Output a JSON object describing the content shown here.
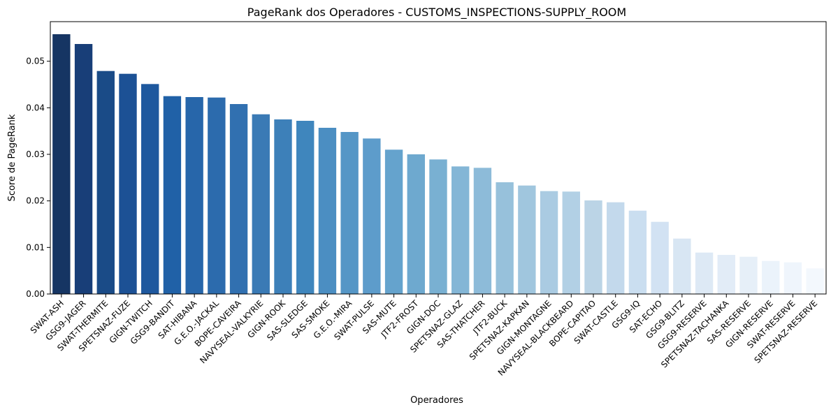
{
  "chart_data": {
    "type": "bar",
    "title": "PageRank dos Operadores - CUSTOMS_INSPECTIONS-SUPPLY_ROOM",
    "xlabel": "Operadores",
    "ylabel": "Score de PageRank",
    "ylim": [
      0,
      0.0585
    ],
    "yticks": [
      0.0,
      0.01,
      0.02,
      0.03,
      0.04,
      0.05
    ],
    "ytick_labels": [
      "0.00",
      "0.01",
      "0.02",
      "0.03",
      "0.04",
      "0.05"
    ],
    "grid": false,
    "categories": [
      "SWAT-ASH",
      "GSG9-JAGER",
      "SWAT-THERMITE",
      "SPETSNAZ-FUZE",
      "GIGN-TWITCH",
      "GSG9-BANDIT",
      "SAT-HIBANA",
      "G.E.O.-JACKAL",
      "BOPE-CAVEIRA",
      "NAVYSEAL-VALKYRIE",
      "GIGN-ROOK",
      "SAS-SLEDGE",
      "SAS-SMOKE",
      "G.E.O.-MIRA",
      "SWAT-PULSE",
      "SAS-MUTE",
      "JTF2-FROST",
      "GIGN-DOC",
      "SPETSNAZ-GLAZ",
      "SAS-THATCHER",
      "JTF2-BUCK",
      "SPETSNAZ-KAPKAN",
      "GIGN-MONTAGNE",
      "NAVYSEAL-BLACKBEARD",
      "BOPE-CAPITAO",
      "SWAT-CASTLE",
      "GSG9-IQ",
      "SAT-ECHO",
      "GSG9-BLITZ",
      "GSG9-RESERVE",
      "SPETSNAZ-TACHANKA",
      "SAS-RESERVE",
      "GIGN-RESERVE",
      "SWAT-RESERVE",
      "SPETSNAZ-RESERVE"
    ],
    "values": [
      0.0558,
      0.0537,
      0.0479,
      0.0473,
      0.0451,
      0.0425,
      0.0423,
      0.0422,
      0.0408,
      0.0386,
      0.0375,
      0.0372,
      0.0357,
      0.0348,
      0.0334,
      0.031,
      0.03,
      0.0289,
      0.0274,
      0.0271,
      0.024,
      0.0233,
      0.0221,
      0.022,
      0.0201,
      0.0197,
      0.0179,
      0.0155,
      0.0119,
      0.0089,
      0.0084,
      0.008,
      0.0071,
      0.0068,
      0.0055
    ],
    "colors": [
      "#163563",
      "#183e78",
      "#1a4b87",
      "#1c5195",
      "#1e589e",
      "#2061a7",
      "#2766aa",
      "#2c6bad",
      "#3170b0",
      "#3a7ab5",
      "#3d80b9",
      "#3f86bd",
      "#4b8ec2",
      "#5596c6",
      "#5d9ccb",
      "#65a3cd",
      "#6ea9cf",
      "#79b0d2",
      "#84b6d6",
      "#8dbbd9",
      "#97c1db",
      "#a0c6de",
      "#aacbe2",
      "#b2d0e5",
      "#bbd4e6",
      "#c3d9ec",
      "#cadef0",
      "#d2e2f3",
      "#d8e6f3",
      "#dde9f5",
      "#e2ecf7",
      "#e6eff8",
      "#ebf3fb",
      "#eff5fc",
      "#f3f8fd"
    ]
  }
}
